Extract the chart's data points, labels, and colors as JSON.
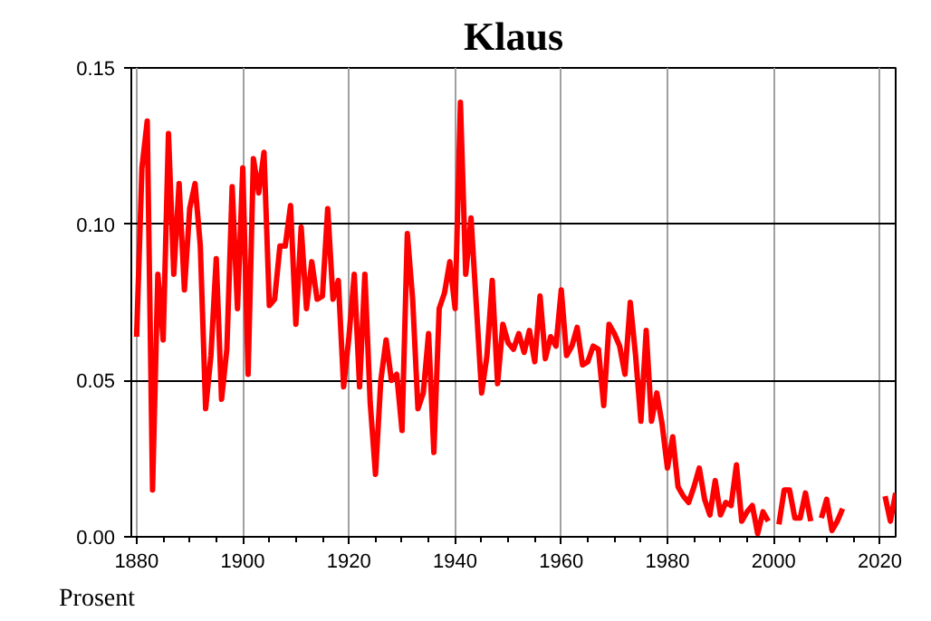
{
  "chart_data": {
    "type": "line",
    "title": "Klaus",
    "ylabel": "Prosent",
    "x": [
      1880,
      1881,
      1882,
      1883,
      1884,
      1885,
      1886,
      1887,
      1888,
      1889,
      1890,
      1891,
      1892,
      1893,
      1894,
      1895,
      1896,
      1897,
      1898,
      1899,
      1900,
      1901,
      1902,
      1903,
      1904,
      1905,
      1906,
      1907,
      1908,
      1909,
      1910,
      1911,
      1912,
      1913,
      1914,
      1915,
      1916,
      1917,
      1918,
      1919,
      1920,
      1921,
      1922,
      1923,
      1924,
      1925,
      1926,
      1927,
      1928,
      1929,
      1930,
      1931,
      1932,
      1933,
      1934,
      1935,
      1936,
      1937,
      1938,
      1939,
      1940,
      1941,
      1942,
      1943,
      1944,
      1945,
      1946,
      1947,
      1948,
      1949,
      1950,
      1951,
      1952,
      1953,
      1954,
      1955,
      1956,
      1957,
      1958,
      1959,
      1960,
      1961,
      1962,
      1963,
      1964,
      1965,
      1966,
      1967,
      1968,
      1969,
      1970,
      1971,
      1972,
      1973,
      1974,
      1975,
      1976,
      1977,
      1978,
      1979,
      1980,
      1981,
      1982,
      1983,
      1984,
      1985,
      1986,
      1987,
      1988,
      1989,
      1990,
      1991,
      1992,
      1993,
      1994,
      1995,
      1996,
      1997,
      1998,
      1999,
      2000,
      2001,
      2002,
      2003,
      2004,
      2005,
      2006,
      2007,
      2008,
      2009,
      2010,
      2011,
      2012,
      2013,
      2014,
      2015,
      2016,
      2017,
      2018,
      2019,
      2020,
      2021,
      2022,
      2023
    ],
    "series": [
      {
        "color": "#ff0000",
        "values": [
          0.064,
          0.118,
          0.133,
          0.015,
          0.084,
          0.063,
          0.129,
          0.084,
          0.113,
          0.079,
          0.105,
          0.113,
          0.093,
          0.041,
          0.058,
          0.089,
          0.044,
          0.06,
          0.112,
          0.073,
          0.118,
          0.052,
          0.121,
          0.11,
          0.123,
          0.074,
          0.076,
          0.093,
          0.093,
          0.106,
          0.068,
          0.099,
          0.073,
          0.088,
          0.076,
          0.077,
          0.105,
          0.076,
          0.082,
          0.048,
          0.064,
          0.084,
          0.048,
          0.084,
          0.043,
          0.02,
          0.05,
          0.063,
          0.05,
          0.052,
          0.034,
          0.097,
          0.076,
          0.041,
          0.046,
          0.065,
          0.027,
          0.073,
          0.078,
          0.088,
          0.073,
          0.139,
          0.084,
          0.102,
          0.074,
          0.046,
          0.058,
          0.082,
          0.049,
          0.068,
          0.062,
          0.06,
          0.065,
          0.059,
          0.066,
          0.056,
          0.077,
          0.057,
          0.064,
          0.061,
          0.079,
          0.058,
          0.061,
          0.067,
          0.055,
          0.056,
          0.061,
          0.06,
          0.042,
          0.068,
          0.065,
          0.061,
          0.052,
          0.075,
          0.058,
          0.037,
          0.066,
          0.037,
          0.046,
          0.036,
          0.022,
          0.032,
          0.016,
          0.013,
          0.011,
          0.016,
          0.022,
          0.012,
          0.007,
          0.018,
          0.007,
          0.011,
          0.01,
          0.023,
          0.005,
          0.008,
          0.01,
          0.001,
          0.008,
          0.005,
          null,
          0.004,
          0.015,
          0.015,
          0.006,
          0.006,
          0.014,
          0.005,
          null,
          0.006,
          0.012,
          0.002,
          0.005,
          0.009,
          null,
          null,
          null,
          null,
          null,
          null,
          null,
          0.013,
          0.005,
          0.014
        ]
      }
    ],
    "xlim": [
      1879,
      2023
    ],
    "xticks": [
      1880,
      {
        "value": 1885,
        "label": null
      },
      {
        "value": 1890,
        "label": null
      },
      {
        "value": 1895,
        "label": null
      },
      1900,
      {
        "value": 1905,
        "label": null
      },
      {
        "value": 1910,
        "label": null
      },
      {
        "value": 1915,
        "label": null
      },
      1920,
      {
        "value": 1925,
        "label": null
      },
      {
        "value": 1930,
        "label": null
      },
      {
        "value": 1935,
        "label": null
      },
      1940,
      {
        "value": 1945,
        "label": null
      },
      {
        "value": 1950,
        "label": null
      },
      {
        "value": 1955,
        "label": null
      },
      1960,
      {
        "value": 1965,
        "label": null
      },
      {
        "value": 1970,
        "label": null
      },
      {
        "value": 1975,
        "label": null
      },
      1980,
      {
        "value": 1985,
        "label": null
      },
      {
        "value": 1990,
        "label": null
      },
      {
        "value": 1995,
        "label": null
      },
      2000,
      {
        "value": 2005,
        "label": null
      },
      {
        "value": 2010,
        "label": null
      },
      {
        "value": 2015,
        "label": null
      },
      2020
    ],
    "ylim": [
      0,
      0.15
    ],
    "yticks": [
      {
        "value": 0,
        "label": "0.00"
      },
      {
        "value": 0.05,
        "label": "0.05"
      },
      {
        "value": 0.1,
        "label": "0.10"
      },
      {
        "value": 0.15,
        "label": "0.15"
      }
    ],
    "grid": true,
    "marker": "none",
    "line_style": "solid"
  }
}
